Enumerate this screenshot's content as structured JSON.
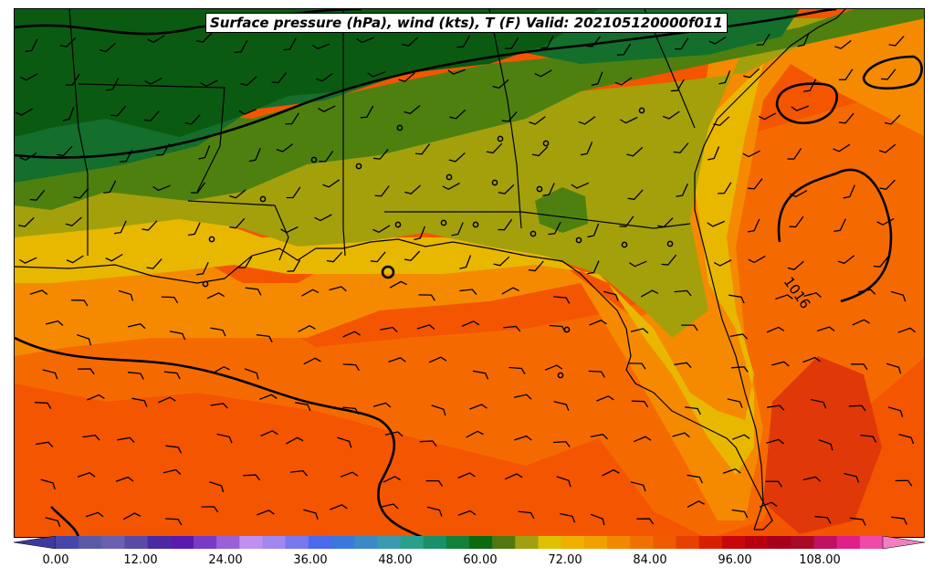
{
  "title": "Surface pressure (hPa), wind (kts), T (F) Valid: 202105120000f011",
  "contour_labels": [
    "1016"
  ],
  "colorbar": {
    "ticks": [
      "0.00",
      "12.00",
      "24.00",
      "36.00",
      "48.00",
      "60.00",
      "72.00",
      "84.00",
      "96.00",
      "108.00"
    ],
    "colors": [
      "#3a3aa0",
      "#4646a8",
      "#5a5aa8",
      "#6a60b0",
      "#5a4aa8",
      "#4a2aa0",
      "#5a1ab0",
      "#7a3ac8",
      "#9a60d8",
      "#c090f0",
      "#a088f0",
      "#7878f0",
      "#4a6af0",
      "#3a78e0",
      "#3a8ac8",
      "#3a9ab0",
      "#2aa08a",
      "#1a9068",
      "#10803a",
      "#0a6a10",
      "#507810",
      "#a0a010",
      "#e0c000",
      "#f0b000",
      "#f0a000",
      "#f08800",
      "#f07000",
      "#f05a00",
      "#e84000",
      "#d82000",
      "#c80808",
      "#b80010",
      "#a8001a",
      "#a80a28",
      "#c01060",
      "#e02088",
      "#f04aa8",
      "#f080c0"
    ]
  },
  "map_colors": {
    "sea_hot": "#f45500",
    "sea_warm": "#f56a00",
    "coast_warm": "#f58a00",
    "coast_yellow": "#e8b800",
    "land_olive": "#a3a00c",
    "land_green": "#4e8010",
    "land_dark": "#136f2b",
    "land_darkest": "#0b5a12",
    "hot_spot": "#e03808"
  }
}
